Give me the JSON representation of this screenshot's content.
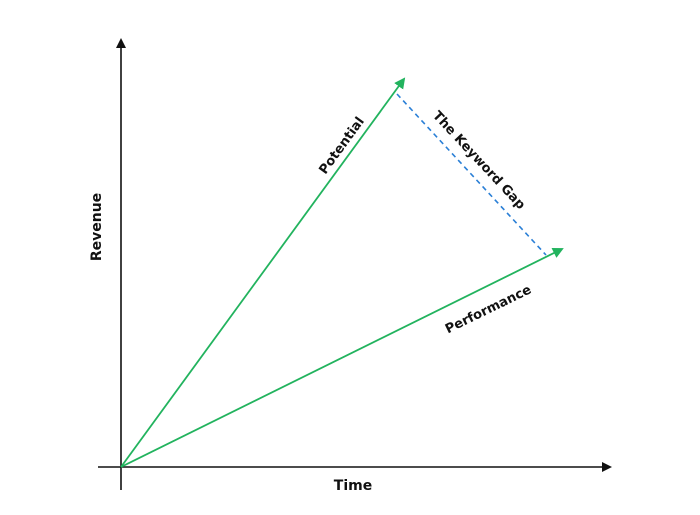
{
  "labels": {
    "x_axis": "Time",
    "y_axis": "Revenue",
    "potential": "Potential",
    "performance": "Performance",
    "gap": "The Keyword Gap"
  },
  "colors": {
    "axis": "#111111",
    "potential_line": "#22b35e",
    "performance_line": "#22b35e",
    "gap_line": "#2a7fd6"
  }
}
